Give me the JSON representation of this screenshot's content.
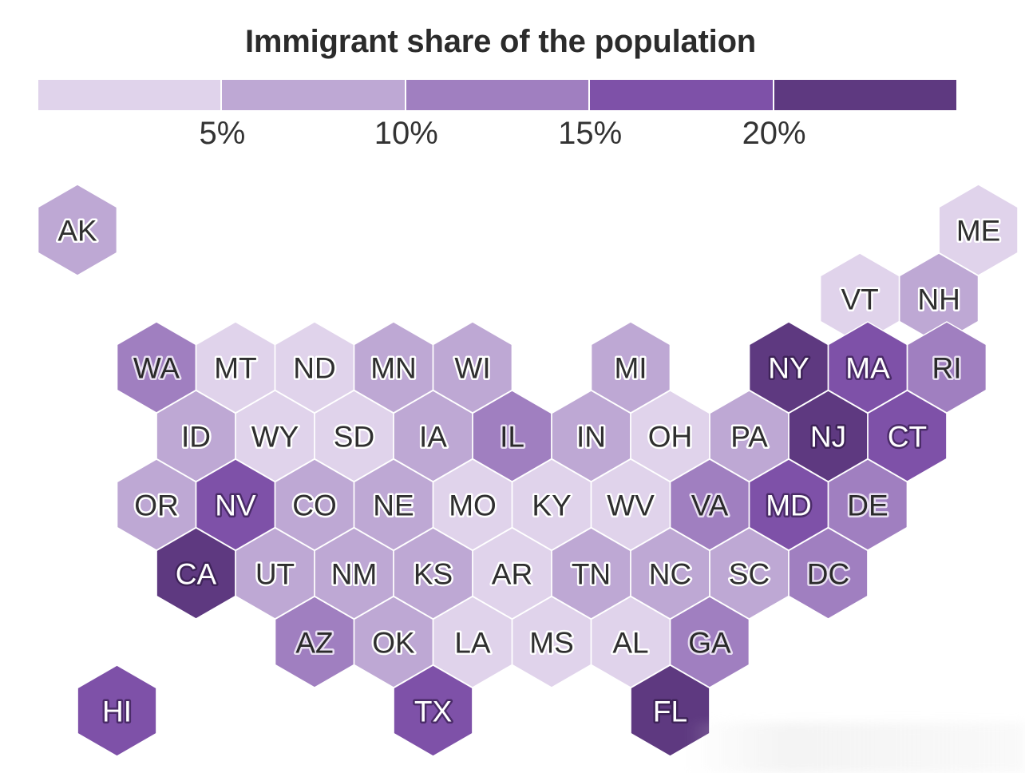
{
  "title": "Immigrant share of the population",
  "legend": {
    "bins": [
      {
        "color": "#e0d3eb"
      },
      {
        "color": "#bea8d4"
      },
      {
        "color": "#a07fc0"
      },
      {
        "color": "#7e51a8"
      },
      {
        "color": "#5e3980"
      }
    ],
    "thresholds": [
      "5%",
      "10%",
      "15%",
      "20%"
    ]
  },
  "states": [
    {
      "abbr": "AK",
      "col": 0,
      "row": 0,
      "bin": 1
    },
    {
      "abbr": "ME",
      "col": 11.4,
      "row": 0,
      "bin": 0
    },
    {
      "abbr": "VT",
      "col": 9.9,
      "row": 1,
      "bin": 0
    },
    {
      "abbr": "NH",
      "col": 10.9,
      "row": 1,
      "bin": 1
    },
    {
      "abbr": "WA",
      "col": 1,
      "row": 2,
      "bin": 2
    },
    {
      "abbr": "MT",
      "col": 2,
      "row": 2,
      "bin": 0
    },
    {
      "abbr": "ND",
      "col": 3,
      "row": 2,
      "bin": 0
    },
    {
      "abbr": "MN",
      "col": 4,
      "row": 2,
      "bin": 1
    },
    {
      "abbr": "WI",
      "col": 5,
      "row": 2,
      "bin": 1
    },
    {
      "abbr": "MI",
      "col": 7,
      "row": 2,
      "bin": 1
    },
    {
      "abbr": "NY",
      "col": 9,
      "row": 2,
      "bin": 4
    },
    {
      "abbr": "MA",
      "col": 10,
      "row": 2,
      "bin": 3
    },
    {
      "abbr": "RI",
      "col": 11,
      "row": 2,
      "bin": 2
    },
    {
      "abbr": "ID",
      "col": 1.5,
      "row": 3,
      "bin": 1
    },
    {
      "abbr": "WY",
      "col": 2.5,
      "row": 3,
      "bin": 0
    },
    {
      "abbr": "SD",
      "col": 3.5,
      "row": 3,
      "bin": 0
    },
    {
      "abbr": "IA",
      "col": 4.5,
      "row": 3,
      "bin": 1
    },
    {
      "abbr": "IL",
      "col": 5.5,
      "row": 3,
      "bin": 2
    },
    {
      "abbr": "IN",
      "col": 6.5,
      "row": 3,
      "bin": 1
    },
    {
      "abbr": "OH",
      "col": 7.5,
      "row": 3,
      "bin": 0
    },
    {
      "abbr": "PA",
      "col": 8.5,
      "row": 3,
      "bin": 1
    },
    {
      "abbr": "NJ",
      "col": 9.5,
      "row": 3,
      "bin": 4
    },
    {
      "abbr": "CT",
      "col": 10.5,
      "row": 3,
      "bin": 3
    },
    {
      "abbr": "OR",
      "col": 1,
      "row": 4,
      "bin": 1
    },
    {
      "abbr": "NV",
      "col": 2,
      "row": 4,
      "bin": 3
    },
    {
      "abbr": "CO",
      "col": 3,
      "row": 4,
      "bin": 1
    },
    {
      "abbr": "NE",
      "col": 4,
      "row": 4,
      "bin": 1
    },
    {
      "abbr": "MO",
      "col": 5,
      "row": 4,
      "bin": 0
    },
    {
      "abbr": "KY",
      "col": 6,
      "row": 4,
      "bin": 0
    },
    {
      "abbr": "WV",
      "col": 7,
      "row": 4,
      "bin": 0
    },
    {
      "abbr": "VA",
      "col": 8,
      "row": 4,
      "bin": 2
    },
    {
      "abbr": "MD",
      "col": 9,
      "row": 4,
      "bin": 3
    },
    {
      "abbr": "DE",
      "col": 10,
      "row": 4,
      "bin": 2
    },
    {
      "abbr": "CA",
      "col": 1.5,
      "row": 5,
      "bin": 4
    },
    {
      "abbr": "UT",
      "col": 2.5,
      "row": 5,
      "bin": 1
    },
    {
      "abbr": "NM",
      "col": 3.5,
      "row": 5,
      "bin": 1
    },
    {
      "abbr": "KS",
      "col": 4.5,
      "row": 5,
      "bin": 1
    },
    {
      "abbr": "AR",
      "col": 5.5,
      "row": 5,
      "bin": 0
    },
    {
      "abbr": "TN",
      "col": 6.5,
      "row": 5,
      "bin": 1
    },
    {
      "abbr": "NC",
      "col": 7.5,
      "row": 5,
      "bin": 1
    },
    {
      "abbr": "SC",
      "col": 8.5,
      "row": 5,
      "bin": 1
    },
    {
      "abbr": "DC",
      "col": 9.5,
      "row": 5,
      "bin": 2
    },
    {
      "abbr": "AZ",
      "col": 3,
      "row": 6,
      "bin": 2
    },
    {
      "abbr": "OK",
      "col": 4,
      "row": 6,
      "bin": 1
    },
    {
      "abbr": "LA",
      "col": 5,
      "row": 6,
      "bin": 0
    },
    {
      "abbr": "MS",
      "col": 6,
      "row": 6,
      "bin": 0
    },
    {
      "abbr": "AL",
      "col": 7,
      "row": 6,
      "bin": 0
    },
    {
      "abbr": "GA",
      "col": 8,
      "row": 6,
      "bin": 2
    },
    {
      "abbr": "HI",
      "col": 0.5,
      "row": 7,
      "bin": 3
    },
    {
      "abbr": "TX",
      "col": 4.5,
      "row": 7,
      "bin": 3
    },
    {
      "abbr": "FL",
      "col": 7.5,
      "row": 7,
      "bin": 4
    }
  ]
}
